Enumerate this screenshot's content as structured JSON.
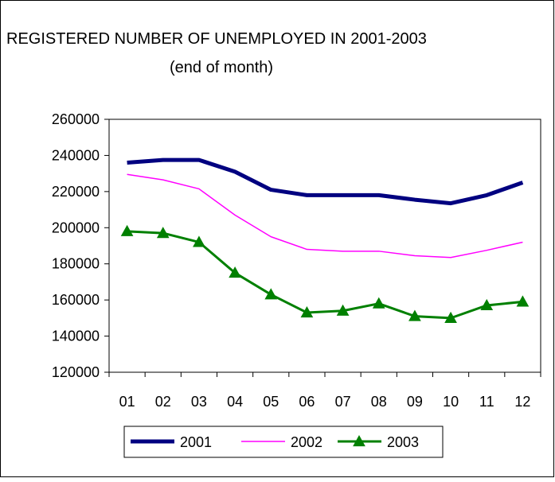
{
  "chart_data": {
    "type": "line",
    "title": "REGISTERED NUMBER OF UNEMPLOYED IN 2001-2003",
    "subtitle": "(end of month)",
    "xlabel": "",
    "ylabel": "",
    "categories": [
      "01",
      "02",
      "03",
      "04",
      "05",
      "06",
      "07",
      "08",
      "09",
      "10",
      "11",
      "12"
    ],
    "ylim": [
      120000,
      260000
    ],
    "yticks": [
      120000,
      140000,
      160000,
      180000,
      200000,
      220000,
      240000,
      260000
    ],
    "grid": false,
    "legend_position": "bottom",
    "series": [
      {
        "name": "2001",
        "color": "#000080",
        "marker": "none",
        "values": [
          236000,
          237500,
          237500,
          231000,
          221000,
          218000,
          218000,
          218000,
          215500,
          213500,
          218000,
          225000
        ]
      },
      {
        "name": "2002",
        "color": "#ff00ff",
        "marker": "none",
        "values": [
          229500,
          226500,
          221500,
          207000,
          195000,
          188000,
          187000,
          187000,
          184500,
          183500,
          187500,
          192000
        ]
      },
      {
        "name": "2003",
        "color": "#008000",
        "marker": "triangle",
        "values": [
          198000,
          197000,
          192000,
          175000,
          163000,
          153000,
          154000,
          158000,
          151000,
          150000,
          157000,
          159000
        ]
      }
    ]
  }
}
